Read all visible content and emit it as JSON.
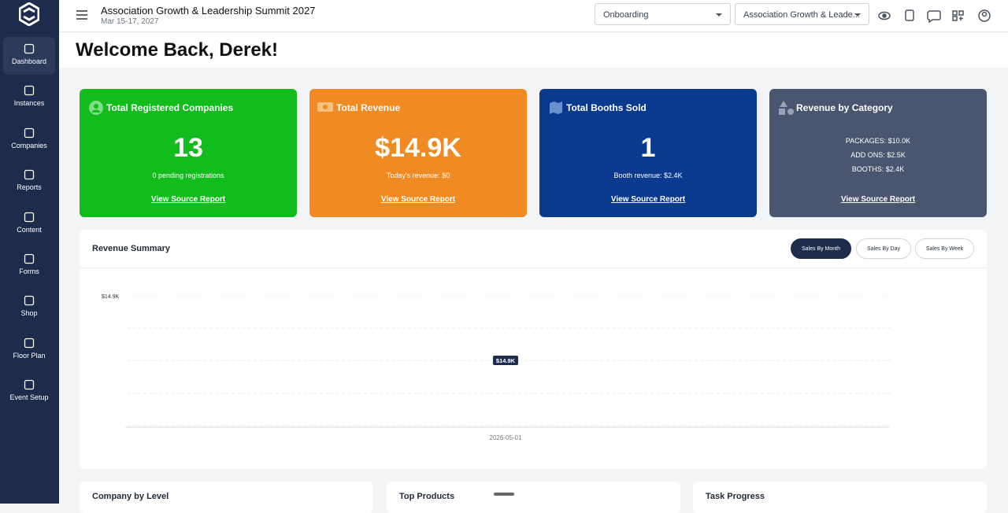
{
  "sidebar": {
    "items": [
      "Dashboard",
      "Instances",
      "Companies",
      "Reports",
      "Content",
      "Forms",
      "Shop",
      "Floor Plan",
      "Event Setup"
    ]
  },
  "header": {
    "title": "Association Growth & Leadership Summit 2027",
    "date": "Mar 15-17, 2027",
    "dropdowns": [
      "Onboarding",
      "Association Growth & Leade..."
    ]
  },
  "welcome": "Welcome Back, Derek!",
  "cards": [
    {
      "title": "Total Registered Companies",
      "value": "13",
      "detail": "0 pending registrations",
      "link": "View Source Report"
    },
    {
      "title": "Total Revenue",
      "value": "$14.9K",
      "detail": "Today's revenue: $0",
      "link": "View Source Report"
    },
    {
      "title": "Total Booths Sold",
      "value": "1",
      "detail": "Booth revenue: $2.4K",
      "link": "View Source Report"
    },
    {
      "title": "Revenue by Category",
      "lines": [
        "PACKAGES: $10.0K",
        "ADD ONS: $2.5K",
        "BOOTHS: $2.4K"
      ],
      "link": "View Source Report"
    }
  ],
  "revenue_summary": {
    "title": "Revenue Summary",
    "tabs": [
      "Sales By Month",
      "Sales By Day",
      "Sales By Week"
    ],
    "chart": {
      "y_tick": "$14.9K",
      "point_label": "$14.9K",
      "x_label": "2026-05-01"
    }
  },
  "panels": [
    "Company by Level",
    "Top Products",
    "Task Progress"
  ]
}
